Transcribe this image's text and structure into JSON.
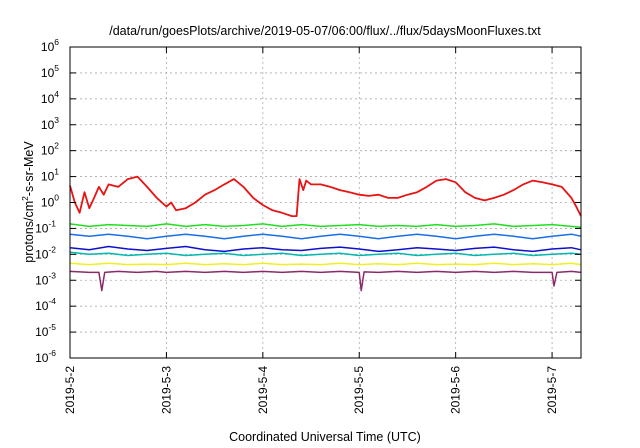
{
  "chart_data": {
    "type": "line",
    "title": "/data/run/goesPlots/archive/2019-05-07/06:00/flux/../flux/5daysMoonFluxes.txt",
    "xlabel": "Coordinated Universal Time (UTC)",
    "ylabel": {
      "base": "protons/cm",
      "sup": "2",
      "rest": "-s-sr-MeV"
    },
    "yscale": "log",
    "ylim": [
      1e-06,
      1000000.0
    ],
    "xlim_days": [
      0,
      5.3
    ],
    "x_unit": "days since 2019-5-2 00:00 UTC",
    "grid": true,
    "legend": "none",
    "x_ticks": [
      {
        "label": "2019-5-2",
        "day": 0
      },
      {
        "label": "2019-5-3",
        "day": 1
      },
      {
        "label": "2019-5-4",
        "day": 2
      },
      {
        "label": "2019-5-5",
        "day": 3
      },
      {
        "label": "2019-5-6",
        "day": 4
      },
      {
        "label": "2019-5-7",
        "day": 5
      }
    ],
    "y_ticks": [
      {
        "base": "10",
        "exp": "6",
        "value": 6
      },
      {
        "base": "10",
        "exp": "5",
        "value": 5
      },
      {
        "base": "10",
        "exp": "4",
        "value": 4
      },
      {
        "base": "10",
        "exp": "3",
        "value": 3
      },
      {
        "base": "10",
        "exp": "2",
        "value": 2
      },
      {
        "base": "10",
        "exp": "1",
        "value": 1
      },
      {
        "base": "10",
        "exp": "0",
        "value": 0
      },
      {
        "base": "10",
        "exp": "-1",
        "value": -1
      },
      {
        "base": "10",
        "exp": "-2",
        "value": -2
      },
      {
        "base": "10",
        "exp": "-3",
        "value": -3
      },
      {
        "base": "10",
        "exp": "-4",
        "value": -4
      },
      {
        "base": "10",
        "exp": "-5",
        "value": -5
      },
      {
        "base": "10",
        "exp": "-6",
        "value": -6
      }
    ],
    "series": [
      {
        "color": "#e81414",
        "width": 1.8,
        "x": [
          0,
          0.05,
          0.1,
          0.15,
          0.2,
          0.25,
          0.3,
          0.35,
          0.4,
          0.5,
          0.6,
          0.7,
          0.8,
          0.9,
          1.0,
          1.05,
          1.1,
          1.2,
          1.3,
          1.4,
          1.5,
          1.6,
          1.7,
          1.8,
          1.9,
          2.0,
          2.1,
          2.2,
          2.3,
          2.35,
          2.38,
          2.42,
          2.45,
          2.5,
          2.6,
          2.7,
          2.8,
          2.9,
          3.0,
          3.1,
          3.2,
          3.3,
          3.4,
          3.5,
          3.6,
          3.7,
          3.8,
          3.9,
          4.0,
          4.1,
          4.2,
          4.3,
          4.4,
          4.5,
          4.6,
          4.7,
          4.8,
          4.9,
          5.0,
          5.1,
          5.2,
          5.25,
          5.3
        ],
        "y": [
          4.5,
          1.0,
          0.4,
          2.5,
          0.6,
          1.5,
          4.0,
          2.0,
          5.0,
          4.0,
          8.0,
          10.0,
          4.0,
          1.5,
          0.7,
          1.0,
          0.5,
          0.6,
          1.0,
          2.0,
          3.0,
          5.0,
          8.0,
          4.0,
          1.5,
          0.8,
          0.5,
          0.4,
          0.3,
          0.3,
          8.0,
          3.0,
          7.0,
          5.0,
          5.0,
          4.0,
          3.0,
          2.5,
          2.0,
          1.8,
          2.0,
          1.5,
          1.5,
          2.0,
          2.5,
          4.0,
          7.0,
          8.0,
          6.0,
          2.5,
          1.5,
          1.2,
          1.5,
          2.0,
          3.0,
          5.0,
          7.0,
          6.0,
          5.0,
          4.0,
          1.5,
          0.7,
          0.3
        ]
      },
      {
        "color": "#22dd22",
        "width": 1.5,
        "x": [
          0,
          0.2,
          0.4,
          0.6,
          0.8,
          1.0,
          1.2,
          1.4,
          1.6,
          1.8,
          2.0,
          2.2,
          2.4,
          2.6,
          2.8,
          3.0,
          3.2,
          3.4,
          3.6,
          3.8,
          4.0,
          4.2,
          4.4,
          4.6,
          4.8,
          5.0,
          5.2,
          5.3
        ],
        "y": [
          0.15,
          0.12,
          0.14,
          0.13,
          0.12,
          0.15,
          0.12,
          0.14,
          0.12,
          0.13,
          0.15,
          0.12,
          0.14,
          0.12,
          0.13,
          0.14,
          0.12,
          0.13,
          0.12,
          0.14,
          0.12,
          0.13,
          0.15,
          0.12,
          0.13,
          0.14,
          0.12,
          0.11
        ]
      },
      {
        "color": "#1a6ee8",
        "width": 1.5,
        "x": [
          0,
          0.2,
          0.4,
          0.6,
          0.8,
          1.0,
          1.2,
          1.4,
          1.6,
          1.8,
          2.0,
          2.2,
          2.4,
          2.6,
          2.8,
          3.0,
          3.2,
          3.4,
          3.6,
          3.8,
          4.0,
          4.2,
          4.4,
          4.6,
          4.8,
          5.0,
          5.2,
          5.3
        ],
        "y": [
          0.06,
          0.05,
          0.06,
          0.05,
          0.04,
          0.05,
          0.06,
          0.05,
          0.04,
          0.05,
          0.06,
          0.05,
          0.04,
          0.05,
          0.06,
          0.05,
          0.04,
          0.05,
          0.06,
          0.05,
          0.04,
          0.05,
          0.06,
          0.05,
          0.04,
          0.05,
          0.06,
          0.05
        ]
      },
      {
        "color": "#1010cc",
        "width": 1.5,
        "x": [
          0,
          0.2,
          0.4,
          0.6,
          0.8,
          1.0,
          1.2,
          1.4,
          1.6,
          1.8,
          2.0,
          2.2,
          2.4,
          2.6,
          2.8,
          3.0,
          3.2,
          3.4,
          3.6,
          3.8,
          4.0,
          4.2,
          4.4,
          4.6,
          4.8,
          5.0,
          5.2,
          5.3
        ],
        "y": [
          0.018,
          0.015,
          0.02,
          0.016,
          0.014,
          0.017,
          0.02,
          0.015,
          0.013,
          0.016,
          0.018,
          0.015,
          0.014,
          0.017,
          0.019,
          0.016,
          0.013,
          0.015,
          0.018,
          0.016,
          0.014,
          0.017,
          0.019,
          0.015,
          0.013,
          0.016,
          0.018,
          0.015
        ]
      },
      {
        "color": "#00b8b0",
        "width": 1.5,
        "x": [
          0,
          0.2,
          0.4,
          0.6,
          0.8,
          1.0,
          1.2,
          1.4,
          1.6,
          1.8,
          2.0,
          2.2,
          2.4,
          2.6,
          2.8,
          3.0,
          3.2,
          3.4,
          3.6,
          3.8,
          4.0,
          4.2,
          4.4,
          4.6,
          4.8,
          5.0,
          5.2,
          5.3
        ],
        "y": [
          0.012,
          0.01,
          0.011,
          0.009,
          0.01,
          0.011,
          0.009,
          0.01,
          0.011,
          0.009,
          0.01,
          0.011,
          0.009,
          0.01,
          0.011,
          0.009,
          0.01,
          0.011,
          0.009,
          0.01,
          0.011,
          0.009,
          0.01,
          0.011,
          0.009,
          0.01,
          0.011,
          0.01
        ]
      },
      {
        "color": "#f0f020",
        "width": 1.5,
        "x": [
          0,
          0.2,
          0.4,
          0.6,
          0.8,
          1.0,
          1.2,
          1.4,
          1.6,
          1.8,
          2.0,
          2.2,
          2.4,
          2.6,
          2.8,
          3.0,
          3.2,
          3.4,
          3.6,
          3.8,
          4.0,
          4.2,
          4.4,
          4.6,
          4.8,
          5.0,
          5.2,
          5.3
        ],
        "y": [
          0.0045,
          0.004,
          0.0045,
          0.004,
          0.0042,
          0.004,
          0.0045,
          0.004,
          0.0043,
          0.004,
          0.0045,
          0.004,
          0.0042,
          0.004,
          0.0045,
          0.004,
          0.0043,
          0.004,
          0.0045,
          0.004,
          0.0042,
          0.004,
          0.0045,
          0.004,
          0.0043,
          0.004,
          0.0045,
          0.004
        ]
      },
      {
        "color": "#8a2a6a",
        "width": 1.5,
        "x": [
          0,
          0.2,
          0.3,
          0.33,
          0.36,
          0.5,
          0.7,
          0.9,
          1.0,
          1.2,
          1.4,
          1.6,
          1.8,
          2.0,
          2.2,
          2.4,
          2.6,
          2.8,
          3.0,
          3.02,
          3.05,
          3.2,
          3.4,
          3.6,
          3.8,
          4.0,
          4.2,
          4.4,
          4.6,
          4.8,
          5.0,
          5.02,
          5.05,
          5.2,
          5.3
        ],
        "y": [
          0.0022,
          0.002,
          0.002,
          0.0004,
          0.002,
          0.0022,
          0.002,
          0.0022,
          0.002,
          0.0022,
          0.002,
          0.0022,
          0.002,
          0.0022,
          0.002,
          0.0022,
          0.002,
          0.0022,
          0.002,
          0.0004,
          0.0021,
          0.002,
          0.0022,
          0.002,
          0.0022,
          0.002,
          0.0022,
          0.002,
          0.0022,
          0.002,
          0.002,
          0.0006,
          0.002,
          0.0022,
          0.002
        ]
      }
    ]
  }
}
